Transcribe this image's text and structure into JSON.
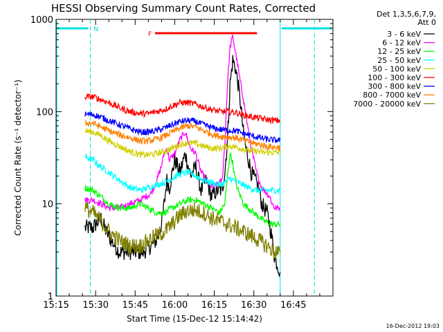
{
  "chart_data": {
    "type": "line",
    "title": "HESSI Observing Summary Count Rates, Corrected",
    "xlabel": "Start Time (15-Dec-12 15:14:42)",
    "ylabel": "Corrected Count Rate (s⁻¹ detector⁻¹)",
    "y_scale": "log",
    "ylim": [
      1,
      1000
    ],
    "xlim_minutes_after_1515": [
      0,
      105
    ],
    "x_ticks": [
      "15:15",
      "15:30",
      "15:45",
      "16:00",
      "16:15",
      "16:30",
      "16:45"
    ],
    "y_ticks": [
      "1",
      "10",
      "100",
      "1000"
    ],
    "legend_header": [
      "Det 1,3,5,6,7,9,",
      "Att 0"
    ],
    "legend_position": "right",
    "footer_date": "16-Dec-2012 19:03",
    "annotations": [
      {
        "label": "N",
        "color": "#00e0e0",
        "x_start": 0,
        "x_end": 13
      },
      {
        "label": "F",
        "color": "#ff0000",
        "x_start": 37,
        "x_end": 77
      }
    ],
    "vertical_lines": [
      {
        "x": 13,
        "style": "dashed"
      },
      {
        "x": 85,
        "style": "solid"
      },
      {
        "x": 98,
        "style": "dashed"
      }
    ],
    "series": [
      {
        "name": "3 - 6 keV",
        "color": "#000000",
        "points": [
          [
            11,
            5.5
          ],
          [
            14,
            5.5
          ],
          [
            17,
            7
          ],
          [
            19,
            5
          ],
          [
            21,
            4
          ],
          [
            24,
            3
          ],
          [
            27,
            3
          ],
          [
            30,
            3
          ],
          [
            33,
            3
          ],
          [
            36,
            3.5
          ],
          [
            38,
            4
          ],
          [
            40,
            6
          ],
          [
            41,
            10
          ],
          [
            42,
            18
          ],
          [
            43,
            15
          ],
          [
            45,
            30
          ],
          [
            47,
            22
          ],
          [
            49,
            35
          ],
          [
            51,
            20
          ],
          [
            53,
            25
          ],
          [
            55,
            14
          ],
          [
            57,
            18
          ],
          [
            59,
            12
          ],
          [
            61,
            14
          ],
          [
            63,
            14
          ],
          [
            64,
            22
          ],
          [
            65,
            50
          ],
          [
            66,
            200
          ],
          [
            67,
            360
          ],
          [
            68,
            300
          ],
          [
            69,
            200
          ],
          [
            70,
            120
          ],
          [
            71,
            60
          ],
          [
            72,
            40
          ],
          [
            73,
            30
          ],
          [
            74,
            22
          ],
          [
            76,
            17
          ],
          [
            77,
            14
          ],
          [
            78,
            10
          ],
          [
            80,
            8
          ],
          [
            81,
            6
          ],
          [
            82,
            4
          ],
          [
            83,
            2.5
          ],
          [
            84,
            2.2
          ],
          [
            85,
            1.8
          ]
        ]
      },
      {
        "name": "6 - 12 keV",
        "color": "#ff00ff",
        "points": [
          [
            11,
            11
          ],
          [
            14,
            11
          ],
          [
            17,
            10
          ],
          [
            20,
            9
          ],
          [
            24,
            9
          ],
          [
            28,
            10
          ],
          [
            32,
            11
          ],
          [
            36,
            13
          ],
          [
            38,
            17
          ],
          [
            40,
            26
          ],
          [
            41,
            35
          ],
          [
            42,
            40
          ],
          [
            43,
            30
          ],
          [
            45,
            35
          ],
          [
            47,
            50
          ],
          [
            49,
            60
          ],
          [
            51,
            40
          ],
          [
            53,
            35
          ],
          [
            55,
            22
          ],
          [
            57,
            18
          ],
          [
            59,
            15
          ],
          [
            61,
            16
          ],
          [
            63,
            18
          ],
          [
            64,
            45
          ],
          [
            65,
            200
          ],
          [
            66,
            500
          ],
          [
            67,
            650
          ],
          [
            68,
            450
          ],
          [
            69,
            300
          ],
          [
            70,
            200
          ],
          [
            71,
            140
          ],
          [
            72,
            90
          ],
          [
            73,
            60
          ],
          [
            74,
            40
          ],
          [
            75,
            30
          ],
          [
            76,
            22
          ],
          [
            77,
            18
          ],
          [
            78,
            15
          ],
          [
            80,
            13
          ],
          [
            81,
            12
          ],
          [
            82,
            10
          ],
          [
            83,
            9
          ],
          [
            84,
            9
          ],
          [
            85,
            9
          ]
        ]
      },
      {
        "name": "12 - 25 keV",
        "color": "#00ff00",
        "points": [
          [
            11,
            15
          ],
          [
            14,
            14
          ],
          [
            17,
            12
          ],
          [
            20,
            10
          ],
          [
            24,
            9
          ],
          [
            28,
            9
          ],
          [
            32,
            10
          ],
          [
            35,
            9
          ],
          [
            38,
            8
          ],
          [
            41,
            8
          ],
          [
            44,
            9
          ],
          [
            47,
            10
          ],
          [
            50,
            11
          ],
          [
            53,
            11
          ],
          [
            56,
            10
          ],
          [
            59,
            9
          ],
          [
            62,
            8
          ],
          [
            64,
            10
          ],
          [
            65,
            20
          ],
          [
            66,
            35
          ],
          [
            67,
            28
          ],
          [
            68,
            18
          ],
          [
            69,
            14
          ],
          [
            70,
            12
          ],
          [
            71,
            10
          ],
          [
            73,
            9
          ],
          [
            76,
            7.5
          ],
          [
            79,
            6.5
          ],
          [
            82,
            6
          ],
          [
            85,
            6
          ]
        ]
      },
      {
        "name": "25 - 50 keV",
        "color": "#00ffff",
        "points": [
          [
            11,
            32
          ],
          [
            14,
            30
          ],
          [
            17,
            25
          ],
          [
            20,
            22
          ],
          [
            24,
            18
          ],
          [
            28,
            15
          ],
          [
            32,
            14
          ],
          [
            35,
            15
          ],
          [
            38,
            16
          ],
          [
            41,
            17
          ],
          [
            44,
            19
          ],
          [
            47,
            21
          ],
          [
            50,
            22
          ],
          [
            53,
            20
          ],
          [
            56,
            18
          ],
          [
            59,
            17
          ],
          [
            62,
            16
          ],
          [
            64,
            17
          ],
          [
            65,
            18
          ],
          [
            66,
            19
          ],
          [
            67,
            18
          ],
          [
            69,
            17
          ],
          [
            71,
            16
          ],
          [
            73,
            15
          ],
          [
            76,
            14
          ],
          [
            79,
            14
          ],
          [
            82,
            14
          ],
          [
            85,
            14
          ]
        ]
      },
      {
        "name": "50 - 100 keV",
        "color": "#d0d000",
        "points": [
          [
            11,
            62
          ],
          [
            14,
            60
          ],
          [
            17,
            55
          ],
          [
            20,
            48
          ],
          [
            24,
            42
          ],
          [
            28,
            37
          ],
          [
            32,
            34
          ],
          [
            35,
            34
          ],
          [
            38,
            35
          ],
          [
            41,
            37
          ],
          [
            44,
            40
          ],
          [
            47,
            44
          ],
          [
            50,
            46
          ],
          [
            53,
            45
          ],
          [
            56,
            42
          ],
          [
            59,
            40
          ],
          [
            62,
            40
          ],
          [
            65,
            42
          ],
          [
            67,
            42
          ],
          [
            70,
            40
          ],
          [
            73,
            38
          ],
          [
            76,
            37
          ],
          [
            79,
            36
          ],
          [
            82,
            36
          ],
          [
            85,
            36
          ]
        ]
      },
      {
        "name": "100 - 300 keV",
        "color": "#ff0000",
        "points": [
          [
            11,
            145
          ],
          [
            14,
            145
          ],
          [
            17,
            135
          ],
          [
            20,
            125
          ],
          [
            24,
            110
          ],
          [
            28,
            100
          ],
          [
            32,
            95
          ],
          [
            35,
            95
          ],
          [
            38,
            100
          ],
          [
            41,
            105
          ],
          [
            44,
            115
          ],
          [
            47,
            125
          ],
          [
            50,
            125
          ],
          [
            53,
            120
          ],
          [
            56,
            112
          ],
          [
            59,
            105
          ],
          [
            62,
            100
          ],
          [
            65,
            100
          ],
          [
            68,
            98
          ],
          [
            71,
            92
          ],
          [
            74,
            88
          ],
          [
            77,
            85
          ],
          [
            80,
            82
          ],
          [
            83,
            80
          ],
          [
            85,
            80
          ]
        ]
      },
      {
        "name": "300 - 800 keV",
        "color": "#0000ff",
        "points": [
          [
            11,
            93
          ],
          [
            14,
            93
          ],
          [
            17,
            87
          ],
          [
            20,
            80
          ],
          [
            24,
            72
          ],
          [
            28,
            65
          ],
          [
            32,
            60
          ],
          [
            35,
            60
          ],
          [
            38,
            62
          ],
          [
            41,
            66
          ],
          [
            44,
            72
          ],
          [
            47,
            78
          ],
          [
            50,
            80
          ],
          [
            53,
            78
          ],
          [
            56,
            72
          ],
          [
            59,
            67
          ],
          [
            62,
            64
          ],
          [
            65,
            63
          ],
          [
            68,
            62
          ],
          [
            71,
            58
          ],
          [
            74,
            55
          ],
          [
            77,
            52
          ],
          [
            80,
            50
          ],
          [
            83,
            49
          ],
          [
            85,
            49
          ]
        ]
      },
      {
        "name": "800 - 7000 keV",
        "color": "#ff8000",
        "points": [
          [
            11,
            75
          ],
          [
            14,
            75
          ],
          [
            17,
            68
          ],
          [
            20,
            62
          ],
          [
            24,
            56
          ],
          [
            28,
            52
          ],
          [
            32,
            48
          ],
          [
            35,
            48
          ],
          [
            38,
            50
          ],
          [
            41,
            54
          ],
          [
            44,
            60
          ],
          [
            47,
            66
          ],
          [
            50,
            70
          ],
          [
            53,
            68
          ],
          [
            56,
            62
          ],
          [
            59,
            57
          ],
          [
            62,
            54
          ],
          [
            65,
            53
          ],
          [
            68,
            52
          ],
          [
            71,
            49
          ],
          [
            74,
            46
          ],
          [
            77,
            44
          ],
          [
            80,
            42
          ],
          [
            83,
            41
          ],
          [
            85,
            41
          ]
        ]
      },
      {
        "name": "7000 - 20000 keV",
        "color": "#808000",
        "points": [
          [
            11,
            9
          ],
          [
            14,
            8
          ],
          [
            17,
            6.5
          ],
          [
            20,
            5
          ],
          [
            24,
            4
          ],
          [
            28,
            3.5
          ],
          [
            32,
            3.5
          ],
          [
            35,
            4
          ],
          [
            38,
            4.5
          ],
          [
            41,
            5
          ],
          [
            44,
            6
          ],
          [
            47,
            7.5
          ],
          [
            50,
            8.5
          ],
          [
            53,
            8.5
          ],
          [
            56,
            8
          ],
          [
            59,
            7
          ],
          [
            62,
            6.5
          ],
          [
            65,
            6
          ],
          [
            68,
            5.5
          ],
          [
            71,
            5
          ],
          [
            74,
            4.5
          ],
          [
            77,
            4
          ],
          [
            80,
            3.5
          ],
          [
            83,
            3
          ],
          [
            85,
            3
          ]
        ]
      }
    ]
  }
}
